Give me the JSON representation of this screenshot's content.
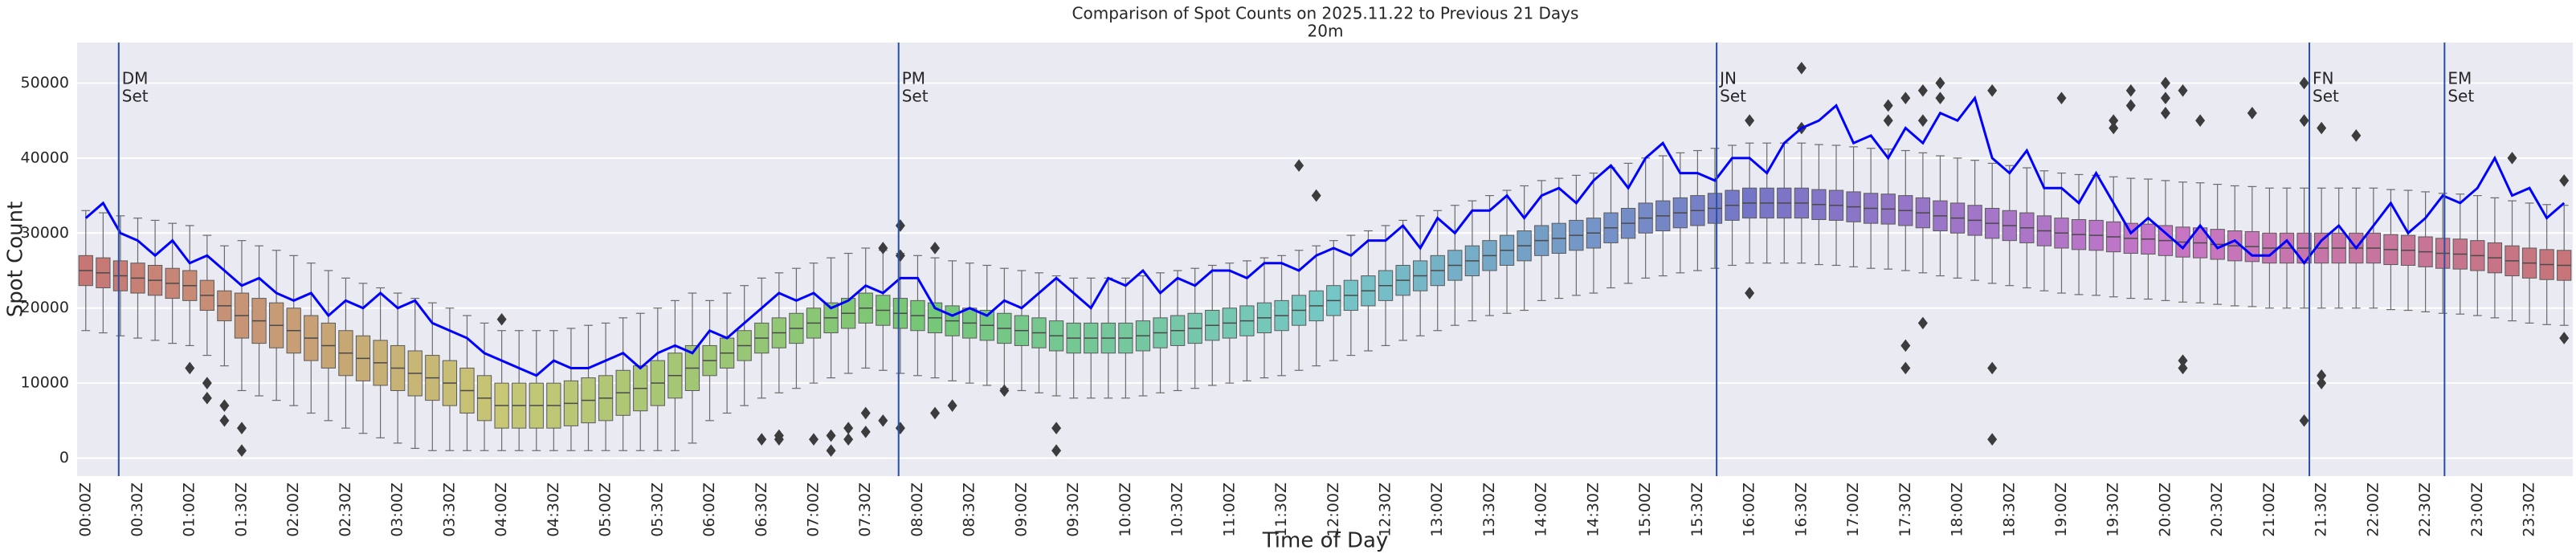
{
  "chart_data": {
    "type": "box",
    "title": "Comparison of Spot Counts on 2025.11.22 to Previous 21 Days",
    "subtitle": "20m",
    "x_label": "Time of Day",
    "y_label": "Spot Count",
    "categories": [
      "00:00Z",
      null,
      null,
      "00:30Z",
      null,
      null,
      "01:00Z",
      null,
      null,
      "01:30Z",
      null,
      null,
      "02:00Z",
      null,
      null,
      "02:30Z",
      null,
      null,
      "03:00Z",
      null,
      null,
      "03:30Z",
      null,
      null,
      "04:00Z",
      null,
      null,
      "04:30Z",
      null,
      null,
      "05:00Z",
      null,
      null,
      "05:30Z",
      null,
      null,
      "06:00Z",
      null,
      null,
      "06:30Z",
      null,
      null,
      "07:00Z",
      null,
      null,
      "07:30Z",
      null,
      null,
      "08:00Z",
      null,
      null,
      "08:30Z",
      null,
      null,
      "09:00Z",
      null,
      null,
      "09:30Z",
      null,
      null,
      "10:00Z",
      null,
      null,
      "10:30Z",
      null,
      null,
      "11:00Z",
      null,
      null,
      "11:30Z",
      null,
      null,
      "12:00Z",
      null,
      null,
      "12:30Z",
      null,
      null,
      "13:00Z",
      null,
      null,
      "13:30Z",
      null,
      null,
      "14:00Z",
      null,
      null,
      "14:30Z",
      null,
      null,
      "15:00Z",
      null,
      null,
      "15:30Z",
      null,
      null,
      "16:00Z",
      null,
      null,
      "16:30Z",
      null,
      null,
      "17:00Z",
      null,
      null,
      "17:30Z",
      null,
      null,
      "18:00Z",
      null,
      null,
      "18:30Z",
      null,
      null,
      "19:00Z",
      null,
      null,
      "19:30Z",
      null,
      null,
      "20:00Z",
      null,
      null,
      "20:30Z",
      null,
      null,
      "21:00Z",
      null,
      null,
      "21:30Z",
      null,
      null,
      "22:00Z",
      null,
      null,
      "22:30Z",
      null,
      null,
      "23:00Z",
      null,
      null,
      "23:30Z",
      null,
      null
    ],
    "median": [
      25000,
      24700,
      24300,
      24000,
      23700,
      23300,
      23000,
      21700,
      20300,
      19000,
      18300,
      17700,
      17000,
      16000,
      15000,
      14000,
      13300,
      12700,
      12000,
      11300,
      10700,
      10000,
      9000,
      8000,
      7000,
      7000,
      7000,
      7000,
      7300,
      7700,
      8000,
      8700,
      9300,
      10000,
      11000,
      12000,
      13000,
      14000,
      15000,
      16000,
      16700,
      17300,
      18000,
      18700,
      19300,
      20000,
      19700,
      19300,
      19000,
      18700,
      18300,
      18000,
      17700,
      17300,
      17000,
      16700,
      16300,
      16000,
      16000,
      16000,
      16000,
      16300,
      16700,
      17000,
      17300,
      17700,
      18000,
      18300,
      18700,
      19000,
      19700,
      20300,
      21000,
      21700,
      22300,
      23000,
      23700,
      24300,
      25000,
      25700,
      26300,
      27000,
      27700,
      28300,
      29000,
      29300,
      29700,
      30000,
      30700,
      31300,
      32000,
      32300,
      32700,
      33000,
      33300,
      33700,
      34000,
      34000,
      34000,
      34000,
      33800,
      33700,
      33500,
      33300,
      33200,
      33000,
      32700,
      32300,
      32000,
      31700,
      31300,
      31000,
      30700,
      30300,
      30000,
      29800,
      29700,
      29500,
      29300,
      29200,
      29000,
      28800,
      28700,
      28500,
      28300,
      28200,
      28000,
      28000,
      28000,
      28000,
      28000,
      28000,
      28000,
      27800,
      27700,
      27500,
      27300,
      27200,
      27000,
      26700,
      26300,
      26000,
      25800,
      25700
    ],
    "q1": [
      23000,
      22700,
      22300,
      22000,
      21700,
      21300,
      21000,
      19700,
      18300,
      16000,
      15300,
      14700,
      14000,
      13000,
      12000,
      11000,
      10300,
      9700,
      9000,
      8300,
      7700,
      7000,
      6000,
      5000,
      4000,
      4000,
      4000,
      4000,
      4300,
      4700,
      5000,
      5700,
      6300,
      7000,
      8000,
      9000,
      11000,
      12000,
      13000,
      14000,
      14700,
      15300,
      16000,
      16700,
      17300,
      18000,
      17700,
      17300,
      17000,
      16700,
      16300,
      16000,
      15700,
      15300,
      15000,
      14700,
      14300,
      14000,
      14000,
      14000,
      14000,
      14300,
      14700,
      15000,
      15300,
      15700,
      16000,
      16300,
      16700,
      17000,
      17700,
      18300,
      19000,
      19700,
      20300,
      21000,
      21700,
      22300,
      23000,
      23700,
      24300,
      25000,
      25700,
      26300,
      27000,
      27300,
      27700,
      28000,
      28700,
      29300,
      30000,
      30300,
      30700,
      31000,
      31300,
      31700,
      32000,
      32000,
      32000,
      32000,
      31800,
      31700,
      31500,
      31300,
      31200,
      31000,
      30700,
      30300,
      30000,
      29700,
      29300,
      29000,
      28700,
      28300,
      28000,
      27800,
      27700,
      27500,
      27300,
      27200,
      27000,
      26800,
      26700,
      26500,
      26300,
      26200,
      26000,
      26000,
      26000,
      26000,
      26000,
      26000,
      26000,
      25800,
      25700,
      25500,
      25300,
      25200,
      25000,
      24700,
      24300,
      24000,
      23800,
      23700
    ],
    "q3": [
      27000,
      26700,
      26300,
      26000,
      25700,
      25300,
      25000,
      23700,
      22300,
      22000,
      21300,
      20700,
      20000,
      19000,
      18000,
      17000,
      16300,
      15700,
      15000,
      14300,
      13700,
      13000,
      12000,
      11000,
      10000,
      10000,
      10000,
      10000,
      10300,
      10700,
      11000,
      11700,
      12300,
      13000,
      14000,
      15000,
      15000,
      16000,
      17000,
      18000,
      18700,
      19300,
      20000,
      20700,
      21300,
      22000,
      21700,
      21300,
      21000,
      20700,
      20300,
      20000,
      19700,
      19300,
      19000,
      18700,
      18300,
      18000,
      18000,
      18000,
      18000,
      18300,
      18700,
      19000,
      19300,
      19700,
      20000,
      20300,
      20700,
      21000,
      21700,
      22300,
      23000,
      23700,
      24300,
      25000,
      25700,
      26300,
      27000,
      27700,
      28300,
      29000,
      29700,
      30300,
      31000,
      31300,
      31700,
      32000,
      32700,
      33300,
      34000,
      34300,
      34700,
      35000,
      35300,
      35700,
      36000,
      36000,
      36000,
      36000,
      35800,
      35700,
      35500,
      35300,
      35200,
      35000,
      34700,
      34300,
      34000,
      33700,
      33300,
      33000,
      32700,
      32300,
      32000,
      31800,
      31700,
      31500,
      31300,
      31200,
      31000,
      30800,
      30700,
      30500,
      30300,
      30200,
      30000,
      30000,
      30000,
      30000,
      30000,
      30000,
      30000,
      29800,
      29700,
      29500,
      29300,
      29200,
      29000,
      28700,
      28300,
      28000,
      27800,
      27700
    ],
    "whislo": [
      17000,
      16700,
      16300,
      16000,
      15700,
      15300,
      15000,
      13700,
      12300,
      9000,
      8300,
      7700,
      7000,
      6000,
      5000,
      4000,
      3300,
      2700,
      2000,
      1300,
      1000,
      1000,
      1000,
      1000,
      1000,
      1000,
      1000,
      1000,
      1000,
      1000,
      1000,
      1000,
      1000,
      1000,
      1000,
      2000,
      5000,
      6000,
      7000,
      8000,
      8700,
      9300,
      10000,
      10700,
      11300,
      12000,
      11700,
      11300,
      11000,
      10700,
      10300,
      10000,
      9700,
      9300,
      9000,
      8700,
      8300,
      8000,
      8000,
      8000,
      8000,
      8300,
      8700,
      9000,
      9300,
      9700,
      10000,
      10300,
      10700,
      11000,
      11700,
      12300,
      13000,
      13700,
      14300,
      15000,
      15700,
      16300,
      17000,
      17700,
      18300,
      19000,
      19300,
      19700,
      21000,
      21300,
      21700,
      22000,
      22700,
      23300,
      24000,
      24300,
      24700,
      25000,
      25300,
      25700,
      26000,
      26000,
      26000,
      26000,
      25800,
      25700,
      25500,
      25300,
      25200,
      25000,
      24700,
      24300,
      24000,
      23700,
      23300,
      23000,
      22700,
      22300,
      22000,
      21800,
      21700,
      21500,
      21300,
      21200,
      21000,
      20800,
      20700,
      20500,
      20300,
      20200,
      20000,
      20000,
      20000,
      20000,
      20000,
      20000,
      20000,
      19800,
      19700,
      19500,
      19300,
      19200,
      19000,
      18700,
      18300,
      18000,
      17800,
      17700
    ],
    "whishi": [
      33000,
      32700,
      32300,
      32000,
      31700,
      31300,
      31000,
      29700,
      28300,
      29000,
      28300,
      27700,
      27000,
      26000,
      25000,
      24000,
      23300,
      22700,
      22000,
      21300,
      20700,
      20000,
      19000,
      18000,
      17000,
      17000,
      17000,
      17000,
      17300,
      17700,
      18000,
      18700,
      19300,
      20000,
      21000,
      22000,
      21000,
      22000,
      23000,
      24000,
      24700,
      25300,
      26000,
      26700,
      27300,
      28000,
      27700,
      27300,
      27000,
      26700,
      26300,
      26000,
      25700,
      25300,
      25000,
      24700,
      24300,
      24000,
      24000,
      24000,
      24000,
      24300,
      24700,
      25000,
      25300,
      25700,
      26000,
      26300,
      26700,
      27000,
      27700,
      28300,
      29000,
      29700,
      30300,
      31000,
      31700,
      32300,
      33000,
      33700,
      34300,
      35000,
      35700,
      36300,
      37000,
      37300,
      37700,
      38000,
      38700,
      39300,
      40000,
      40300,
      40700,
      41000,
      41300,
      41700,
      42000,
      42000,
      42000,
      42000,
      41800,
      41700,
      41500,
      41300,
      41200,
      41000,
      40700,
      40300,
      40000,
      39700,
      39300,
      39000,
      38700,
      38300,
      38000,
      37800,
      37700,
      37500,
      37300,
      37200,
      37000,
      36800,
      36700,
      36500,
      36300,
      36200,
      36000,
      36000,
      36000,
      36000,
      36000,
      36000,
      36000,
      35800,
      35700,
      35500,
      35300,
      35200,
      35000,
      34700,
      34300,
      34000,
      33800,
      33700
    ],
    "outliers": [
      [],
      [],
      [],
      [],
      [],
      [],
      [
        12000
      ],
      [
        10000,
        8000
      ],
      [
        7000,
        5000
      ],
      [
        4000,
        1000
      ],
      [],
      [],
      [],
      [],
      [],
      [],
      [],
      [],
      [],
      [],
      [],
      [],
      [],
      [],
      [
        18500
      ],
      [],
      [],
      [],
      [],
      [],
      [],
      [],
      [],
      [],
      [],
      [],
      [],
      [],
      [],
      [
        2500
      ],
      [
        2500,
        3000
      ],
      [],
      [
        2500
      ],
      [
        3000,
        1000
      ],
      [
        4000,
        2500
      ],
      [
        3500,
        6000
      ],
      [
        28000,
        5000
      ],
      [
        31000,
        27000,
        4000
      ],
      [],
      [
        28000,
        6000
      ],
      [
        7000
      ],
      [],
      [],
      [
        9000
      ],
      [],
      [],
      [
        1000,
        4000
      ],
      [],
      [],
      [],
      [],
      [],
      [],
      [],
      [],
      [],
      [],
      [],
      [],
      [],
      [
        39000
      ],
      [
        35000
      ],
      [],
      [],
      [],
      [],
      [],
      [],
      [],
      [],
      [],
      [],
      [],
      [],
      [],
      [],
      [],
      [],
      [],
      [],
      [],
      [],
      [],
      [],
      [],
      [],
      [
        45000,
        22000
      ],
      [],
      [],
      [
        52000,
        44000
      ],
      [],
      [],
      [],
      [],
      [
        47000,
        45000
      ],
      [
        48000,
        15000,
        12000
      ],
      [
        49000,
        45000,
        18000
      ],
      [
        50000,
        48000
      ],
      [],
      [],
      [
        2500,
        12000,
        49000
      ],
      [],
      [],
      [],
      [
        48000
      ],
      [],
      [],
      [
        45000,
        44000
      ],
      [
        49000,
        47000
      ],
      [],
      [
        50000,
        48000,
        46000
      ],
      [
        49000,
        12000,
        13000
      ],
      [
        45000
      ],
      [],
      [],
      [
        46000
      ],
      [],
      [],
      [
        50000,
        45000,
        5000
      ],
      [
        44000,
        10000,
        11000
      ],
      [],
      [
        43000
      ],
      [],
      [],
      [],
      [],
      [],
      [],
      [],
      [],
      [
        40000
      ],
      [],
      [],
      [
        37000,
        16000
      ]
    ],
    "palette": "husl",
    "line": {
      "color": "#0000ff",
      "values": [
        32000,
        34000,
        30000,
        29000,
        27000,
        29000,
        26000,
        27000,
        25000,
        23000,
        24000,
        22000,
        21000,
        22000,
        19000,
        21000,
        20000,
        22000,
        20000,
        21000,
        18000,
        17000,
        16000,
        14000,
        13000,
        12000,
        11000,
        13000,
        12000,
        12000,
        13000,
        14000,
        12000,
        14000,
        15000,
        14000,
        17000,
        16000,
        18000,
        20000,
        22000,
        21000,
        22000,
        20000,
        21000,
        23000,
        22000,
        24000,
        24000,
        20000,
        19000,
        20000,
        19000,
        21000,
        20000,
        22000,
        24000,
        22000,
        20000,
        24000,
        23000,
        25000,
        22000,
        24000,
        23000,
        25000,
        25000,
        24000,
        26000,
        26000,
        25000,
        27000,
        28000,
        27000,
        29000,
        29000,
        31000,
        28000,
        32000,
        30000,
        33000,
        33000,
        35000,
        32000,
        35000,
        36000,
        34000,
        37000,
        39000,
        36000,
        40000,
        42000,
        38000,
        38000,
        37000,
        40000,
        40000,
        38000,
        42000,
        44000,
        45000,
        47000,
        42000,
        43000,
        40000,
        44000,
        42000,
        46000,
        45000,
        48000,
        40000,
        38000,
        41000,
        36000,
        36000,
        34000,
        38000,
        34000,
        30000,
        32000,
        30000,
        28000,
        31000,
        28000,
        29000,
        27000,
        27000,
        29000,
        26000,
        29000,
        31000,
        28000,
        31000,
        34000,
        30000,
        32000,
        35000,
        34000,
        36000,
        40000,
        35000,
        36000,
        32000,
        34000
      ]
    },
    "annotations": [
      {
        "lines": [
          "DM",
          "Set"
        ],
        "x": 1.9
      },
      {
        "lines": [
          "PM",
          "Set"
        ],
        "x": 46.9
      },
      {
        "lines": [
          "JN",
          "Set"
        ],
        "x": 94.1
      },
      {
        "lines": [
          "FN",
          "Set"
        ],
        "x": 128.3
      },
      {
        "lines": [
          "EM",
          "Set"
        ],
        "x": 136.1
      }
    ],
    "annotation_color": "#2a4ea0",
    "ylim": [
      -2400,
      55400
    ],
    "yticks": [
      0,
      10000,
      20000,
      30000,
      40000,
      50000
    ],
    "grid": true
  }
}
